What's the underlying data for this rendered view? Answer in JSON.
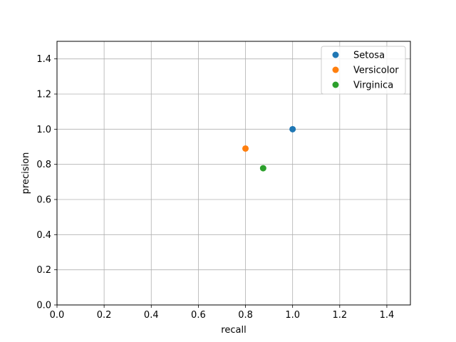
{
  "chart_data": {
    "type": "scatter",
    "title": "",
    "xlabel": "recall",
    "ylabel": "precision",
    "xlim": [
      0.0,
      1.5
    ],
    "ylim": [
      0.0,
      1.5
    ],
    "xticks": [
      0.0,
      0.2,
      0.4,
      0.6,
      0.8,
      1.0,
      1.2,
      1.4
    ],
    "yticks": [
      0.0,
      0.2,
      0.4,
      0.6,
      0.8,
      1.0,
      1.2,
      1.4
    ],
    "xtick_labels": [
      "0.0",
      "0.2",
      "0.4",
      "0.6",
      "0.8",
      "1.0",
      "1.2",
      "1.4"
    ],
    "ytick_labels": [
      "0.0",
      "0.2",
      "0.4",
      "0.6",
      "0.8",
      "1.0",
      "1.2",
      "1.4"
    ],
    "grid": true,
    "legend_position": "top-right",
    "series": [
      {
        "name": "Setosa",
        "color": "#1f77b4",
        "points": [
          {
            "x": 1.0,
            "y": 1.0
          }
        ]
      },
      {
        "name": "Versicolor",
        "color": "#ff7f0e",
        "points": [
          {
            "x": 0.8,
            "y": 0.89
          }
        ]
      },
      {
        "name": "Virginica",
        "color": "#2ca02c",
        "points": [
          {
            "x": 0.875,
            "y": 0.778
          }
        ]
      }
    ]
  }
}
